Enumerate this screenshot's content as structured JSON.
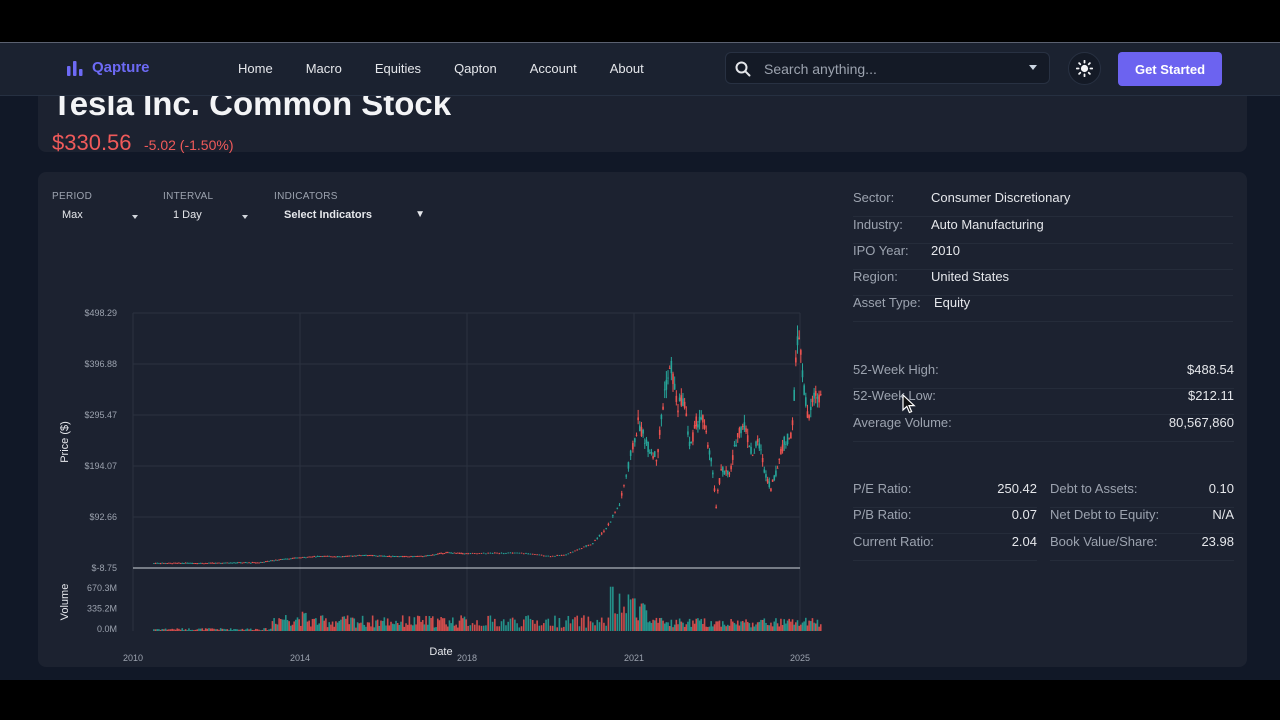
{
  "nav": {
    "brand": "Qapture",
    "links": [
      "Home",
      "Macro",
      "Equities",
      "Qapton",
      "Account",
      "About"
    ],
    "search_placeholder": "Search anything...",
    "cta": "Get Started"
  },
  "stock": {
    "title": "Tesla Inc. Common Stock",
    "price": "$330.56",
    "change": "-5.02 (-1.50%)"
  },
  "controls": {
    "period_label": "PERIOD",
    "period_value": "Max",
    "interval_label": "INTERVAL",
    "interval_value": "1 Day",
    "indicators_label": "INDICATORS",
    "indicators_value": "Select Indicators"
  },
  "chart_data": {
    "type": "line",
    "xlabel": "Date",
    "ylabel": "Price ($)",
    "volume_label": "Volume",
    "x_ticks": [
      "2010",
      "2014",
      "2018",
      "2021",
      "2025"
    ],
    "y_ticks": [
      "$498.29",
      "$396.88",
      "$295.47",
      "$194.07",
      "$92.66",
      "$-8.75"
    ],
    "volume_ticks": [
      "670.3M",
      "335.2M",
      "0.0M"
    ],
    "ylim": [
      -8.75,
      498.29
    ],
    "volume_lim": [
      0,
      670.3
    ],
    "series": [
      {
        "values": [
          [
            "2010.5",
            1
          ],
          [
            "2011.0",
            1
          ],
          [
            "2011.5",
            1
          ],
          [
            "2012.0",
            1
          ],
          [
            "2012.5",
            2
          ],
          [
            "2013.0",
            2
          ],
          [
            "2013.5",
            8
          ],
          [
            "2014.0",
            12
          ],
          [
            "2014.5",
            15
          ],
          [
            "2015.0",
            14
          ],
          [
            "2015.5",
            17
          ],
          [
            "2016.0",
            15
          ],
          [
            "2016.5",
            14
          ],
          [
            "2017.0",
            15
          ],
          [
            "2017.5",
            22
          ],
          [
            "2018.0",
            20
          ],
          [
            "2018.5",
            21
          ],
          [
            "2019.0",
            21
          ],
          [
            "2019.5",
            15
          ],
          [
            "2019.75",
            17
          ],
          [
            "2020.0",
            28
          ],
          [
            "2020.25",
            40
          ],
          [
            "2020.5",
            70
          ],
          [
            "2020.75",
            120
          ],
          [
            "2020.95",
            220
          ],
          [
            "2021.1",
            280
          ],
          [
            "2021.35",
            230
          ],
          [
            "2021.55",
            210
          ],
          [
            "2021.75",
            350
          ],
          [
            "2021.9",
            390
          ],
          [
            "2022.05",
            310
          ],
          [
            "2022.2",
            330
          ],
          [
            "2022.35",
            230
          ],
          [
            "2022.5",
            280
          ],
          [
            "2022.65",
            290
          ],
          [
            "2022.85",
            210
          ],
          [
            "2022.98",
            115
          ],
          [
            "2023.1",
            190
          ],
          [
            "2023.3",
            175
          ],
          [
            "2023.5",
            260
          ],
          [
            "2023.65",
            280
          ],
          [
            "2023.85",
            215
          ],
          [
            "2024.0",
            245
          ],
          [
            "2024.15",
            185
          ],
          [
            "2024.3",
            150
          ],
          [
            "2024.45",
            190
          ],
          [
            "2024.6",
            240
          ],
          [
            "2024.8",
            255
          ],
          [
            "2024.92",
            420
          ],
          [
            "2024.97",
            470
          ],
          [
            "2025.05",
            380
          ],
          [
            "2025.2",
            280
          ],
          [
            "2025.35",
            340
          ],
          [
            "2025.5",
            330
          ]
        ]
      }
    ]
  },
  "info": [
    {
      "label": "Sector:",
      "value": "Consumer Discretionary"
    },
    {
      "label": "Industry:",
      "value": "Auto Manufacturing"
    },
    {
      "label": "IPO Year:",
      "value": "2010"
    },
    {
      "label": "Region:",
      "value": "United States"
    },
    {
      "label": "Asset Type:",
      "value": "Equity"
    }
  ],
  "stats": [
    {
      "label": "52-Week High:",
      "value": "$488.54"
    },
    {
      "label": "52-Week Low:",
      "value": "$212.11"
    },
    {
      "label": "Average Volume:",
      "value": "80,567,860"
    }
  ],
  "ratios_left": [
    {
      "label": "P/E Ratio:",
      "value": "250.42"
    },
    {
      "label": "P/B Ratio:",
      "value": "0.07"
    },
    {
      "label": "Current Ratio:",
      "value": "2.04"
    }
  ],
  "ratios_right": [
    {
      "label": "Debt to Assets:",
      "value": "0.10"
    },
    {
      "label": "Net Debt to Equity:",
      "value": "N/A"
    },
    {
      "label": "Book Value/Share:",
      "value": "23.98"
    }
  ],
  "colors": {
    "accent": "#6c63f0",
    "negative": "#f05a5a",
    "candle_up": "#26a69a",
    "candle_down": "#ef5350"
  }
}
